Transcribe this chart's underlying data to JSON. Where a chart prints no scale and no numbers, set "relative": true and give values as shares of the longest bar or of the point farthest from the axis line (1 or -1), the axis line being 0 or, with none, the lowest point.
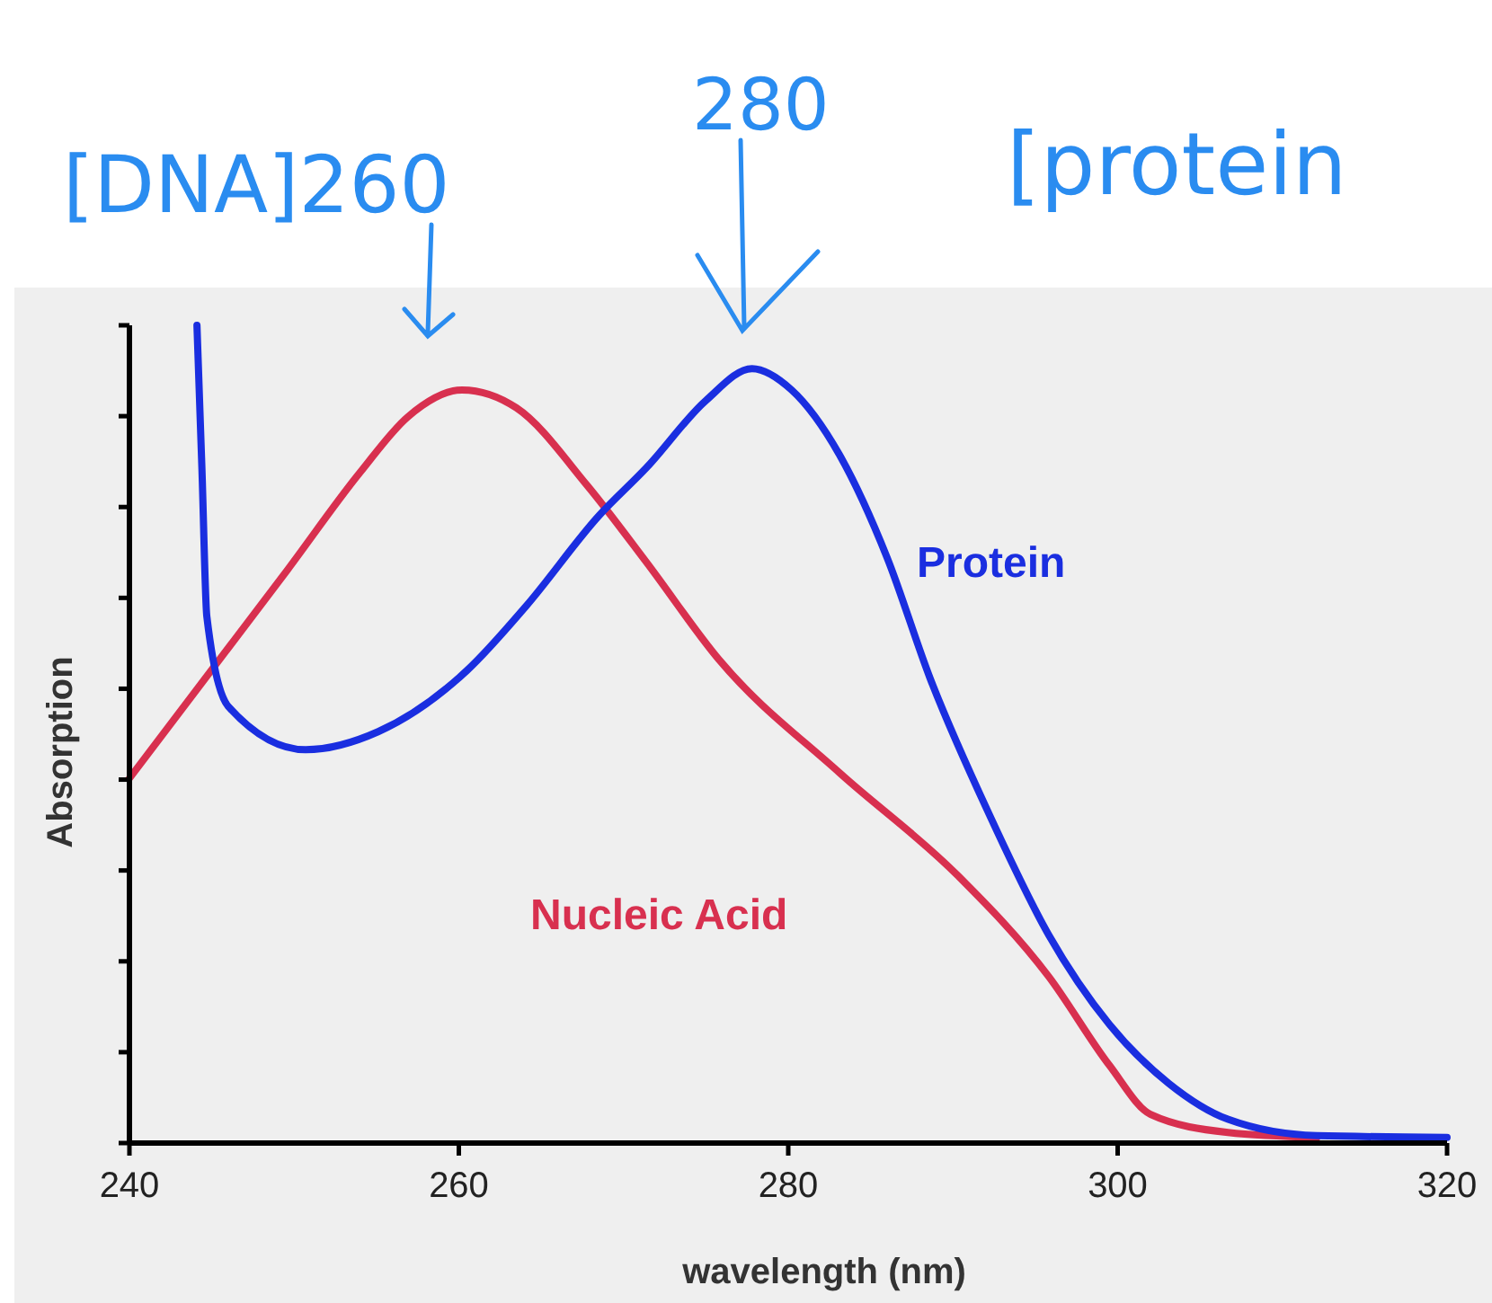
{
  "chart_data": {
    "type": "line",
    "xlabel": "wavelength (nm)",
    "ylabel": "Absorption",
    "relative": true,
    "xlim": [
      240,
      320
    ],
    "xticks": [
      240,
      260,
      280,
      300,
      320
    ],
    "grid": false,
    "marker": "none",
    "line_style": "solid",
    "annotations": [
      "[DNA]260",
      "280",
      "[protein"
    ],
    "series": [
      {
        "name": "Nucleic Acid",
        "color": "#d8304f",
        "x": [
          240,
          249.6,
          254,
          256.9,
          260.2,
          263.5,
          267.8,
          271.4,
          275.8,
          283.1,
          290.3,
          295.8,
          299.5,
          302,
          306.7,
          312.1
        ],
        "values": [
          0.446,
          0.701,
          0.82,
          0.888,
          0.921,
          0.899,
          0.804,
          0.71,
          0.591,
          0.453,
          0.327,
          0.204,
          0.095,
          0.035,
          0.013,
          0.007
        ]
      },
      {
        "name": "Protein",
        "color": "#1a2ee0",
        "x": [
          244.1,
          244.4,
          244.7,
          246,
          250.7,
          255.1,
          260.5,
          264.1,
          268.5,
          271.4,
          275,
          277.8,
          280.2,
          283.1,
          286,
          288.6,
          292.2,
          295.8,
          299.5,
          303.1,
          306.7,
          312.1,
          320
        ],
        "values": [
          1,
          0.826,
          0.644,
          0.534,
          0.481,
          0.503,
          0.578,
          0.657,
          0.767,
          0.826,
          0.908,
          0.947,
          0.921,
          0.842,
          0.716,
          0.569,
          0.402,
          0.255,
          0.145,
          0.073,
          0.029,
          0.009,
          0.007
        ]
      }
    ]
  }
}
